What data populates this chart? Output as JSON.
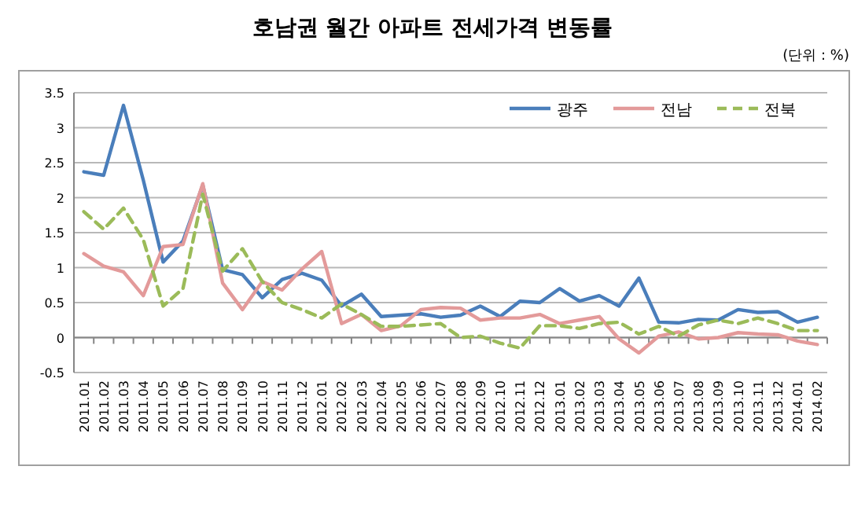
{
  "chart_data": {
    "type": "line",
    "title": "호남권 월간 아파트 전세가격 변동률",
    "annotations": [
      "(단위 : %)"
    ],
    "categories": [
      "2011.01",
      "2011.02",
      "2011.03",
      "2011.04",
      "2011.05",
      "2011.06",
      "2011.07",
      "2011.08",
      "2011.09",
      "2011.10",
      "2011.11",
      "2011.12",
      "2012.01",
      "2012.02",
      "2012.03",
      "2012.04",
      "2012.05",
      "2012.06",
      "2012.07",
      "2012.08",
      "2012.09",
      "2012.10",
      "2012.11",
      "2012.12",
      "2013.01",
      "2013.02",
      "2013.03",
      "2013.04",
      "2013.05",
      "2013.06",
      "2013.07",
      "2013.08",
      "2013.09",
      "2013.10",
      "2013.11",
      "2013.12",
      "2014.01",
      "2014.02"
    ],
    "series": [
      {
        "name": "광주",
        "color": "#4a7ebb",
        "line_style": "solid",
        "values": [
          2.37,
          2.32,
          3.32,
          2.25,
          1.08,
          1.38,
          2.18,
          0.97,
          0.9,
          0.57,
          0.83,
          0.92,
          0.82,
          0.45,
          0.62,
          0.3,
          0.32,
          0.34,
          0.29,
          0.32,
          0.45,
          0.3,
          0.52,
          0.5,
          0.7,
          0.52,
          0.6,
          0.45,
          0.85,
          0.22,
          0.21,
          0.26,
          0.25,
          0.4,
          0.36,
          0.37,
          0.22,
          0.29
        ]
      },
      {
        "name": "전남",
        "color": "#e39a9a",
        "line_style": "solid",
        "values": [
          1.2,
          1.02,
          0.94,
          0.6,
          1.3,
          1.33,
          2.2,
          0.78,
          0.4,
          0.8,
          0.68,
          0.98,
          1.23,
          0.2,
          0.33,
          0.1,
          0.17,
          0.4,
          0.43,
          0.42,
          0.25,
          0.28,
          0.28,
          0.33,
          0.2,
          0.25,
          0.3,
          -0.02,
          -0.22,
          0.02,
          0.08,
          -0.02,
          0.0,
          0.07,
          0.05,
          0.04,
          -0.05,
          -0.1
        ]
      },
      {
        "name": "전북",
        "color": "#9bbb59",
        "line_style": "dashed",
        "values": [
          1.8,
          1.55,
          1.85,
          1.4,
          0.45,
          0.7,
          2.05,
          0.95,
          1.27,
          0.8,
          0.5,
          0.4,
          0.28,
          0.48,
          0.33,
          0.16,
          0.16,
          0.18,
          0.2,
          0.0,
          0.02,
          -0.08,
          -0.15,
          0.17,
          0.17,
          0.13,
          0.2,
          0.22,
          0.05,
          0.16,
          0.02,
          0.18,
          0.25,
          0.2,
          0.28,
          0.2,
          0.1,
          0.1
        ]
      }
    ],
    "ylim": [
      -0.5,
      3.5
    ],
    "yticks": [
      -0.5,
      0,
      0.5,
      1,
      1.5,
      2,
      2.5,
      3,
      3.5
    ],
    "grid": "y",
    "legend": "top right",
    "marker": "none"
  }
}
